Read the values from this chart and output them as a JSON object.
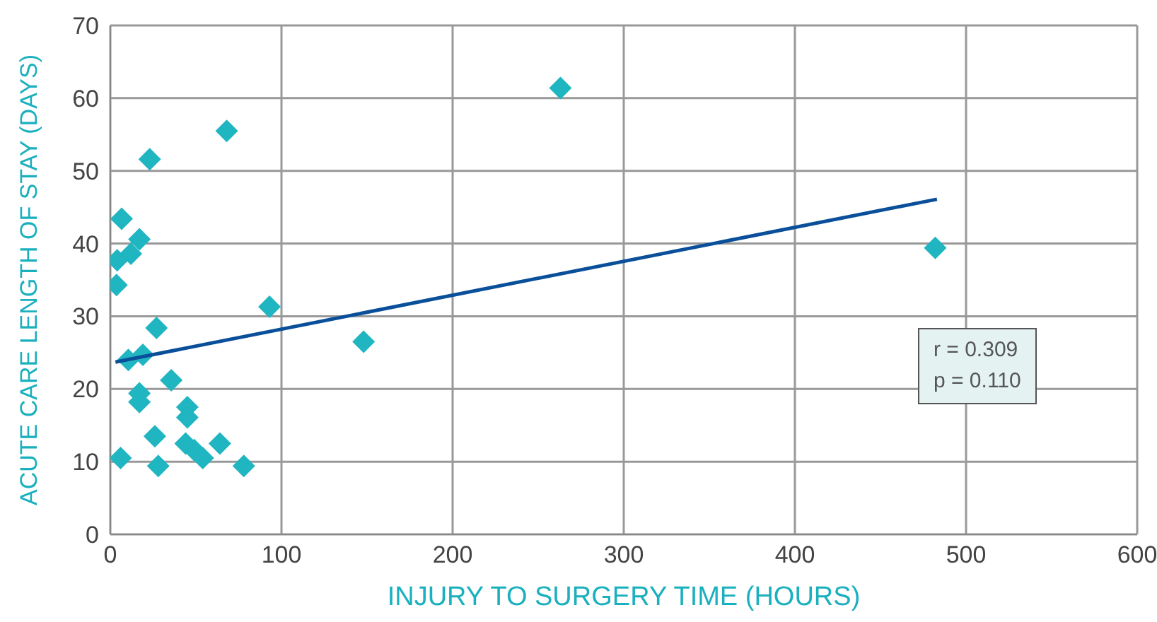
{
  "chart_data": {
    "type": "scatter",
    "xlabel": "INJURY TO SURGERY TIME (HOURS)",
    "ylabel": "ACUTE CARE LENGTH OF STAY (DAYS)",
    "xlim": [
      0,
      600
    ],
    "xticks": [
      0,
      100,
      200,
      300,
      400,
      500,
      600
    ],
    "ylim": [
      0,
      70
    ],
    "yticks": [
      0,
      10,
      20,
      30,
      40,
      50,
      60,
      70
    ],
    "grid": true,
    "legend": false,
    "marker": "diamond",
    "series": [
      {
        "color": "#1fb5c1",
        "x": [
          68,
          23,
          6.6,
          17,
          12,
          4,
          3.6,
          93,
          27,
          148,
          10.5,
          19,
          35.6,
          17,
          17,
          45,
          45,
          26,
          44,
          64,
          49,
          54,
          6,
          28,
          78,
          263,
          482
        ],
        "values": [
          55.5,
          51.6,
          43.4,
          40.6,
          38.6,
          37.7,
          34.3,
          31.3,
          28.4,
          26.5,
          24,
          24.7,
          21.2,
          19.4,
          18.2,
          17.5,
          16.1,
          13.5,
          12.5,
          12.5,
          11.6,
          10.5,
          10.5,
          9.4,
          9.4,
          61.4,
          39.4
        ]
      },
      {
        "type": "line",
        "color": "#0a4f9a",
        "marker": "none",
        "line_style": "solid",
        "x": [
          3,
          483
        ],
        "values": [
          23.7,
          46.1
        ]
      }
    ],
    "annotations": [
      "r = 0.309",
      "p = 0.110"
    ]
  }
}
